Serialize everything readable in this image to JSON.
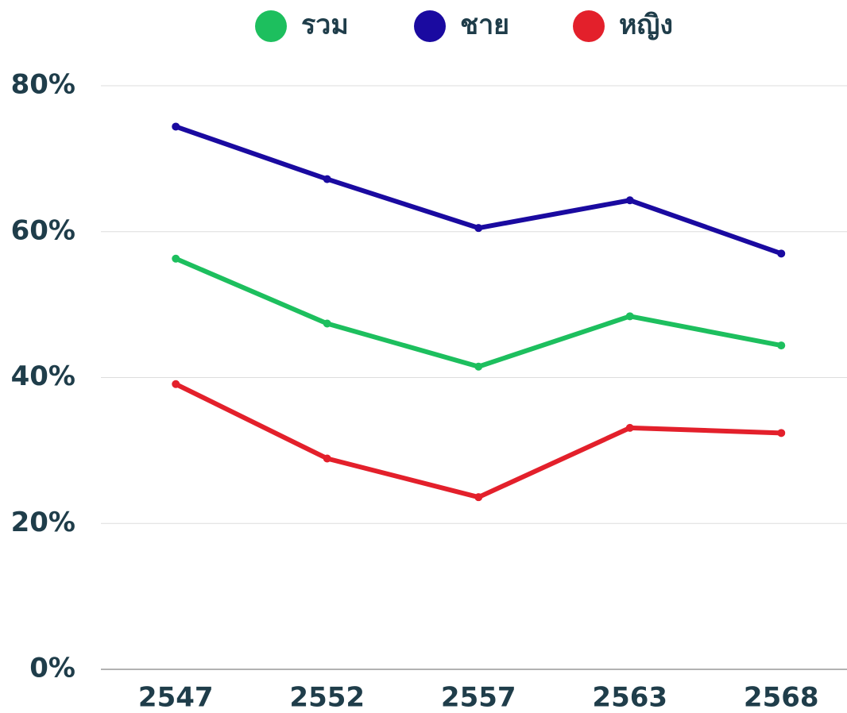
{
  "chart_data": {
    "type": "line",
    "categories": [
      "2547",
      "2552",
      "2557",
      "2563",
      "2568"
    ],
    "series": [
      {
        "name": "รวม",
        "color": "#1dbf5e",
        "values": [
          56.3,
          47.4,
          41.5,
          48.4,
          44.4
        ]
      },
      {
        "name": "ชาย",
        "color": "#1a0aa0",
        "values": [
          74.4,
          67.2,
          60.5,
          64.3,
          57.0
        ]
      },
      {
        "name": "หญิง",
        "color": "#e3202b",
        "values": [
          39.1,
          28.9,
          23.6,
          33.1,
          32.4
        ]
      }
    ],
    "ylim": [
      0,
      80
    ],
    "yticks": [
      {
        "value": 0,
        "label": "0%"
      },
      {
        "value": 20,
        "label": "20%"
      },
      {
        "value": 40,
        "label": "40%"
      },
      {
        "value": 60,
        "label": "60%"
      },
      {
        "value": 80,
        "label": "80%"
      }
    ],
    "grid": true,
    "legend": "top"
  }
}
